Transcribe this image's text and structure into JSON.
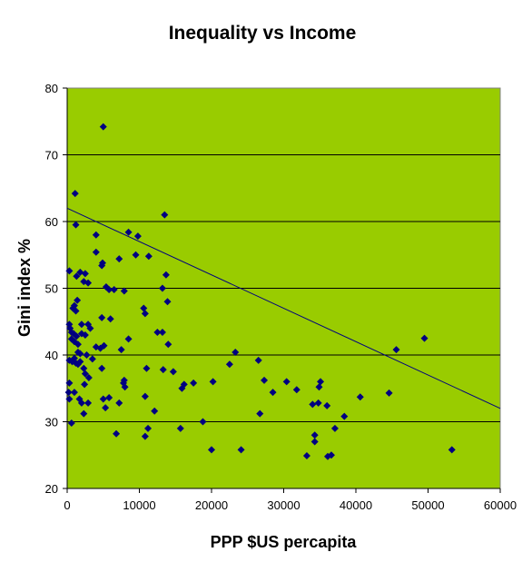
{
  "colors": {
    "plot_area": "#99cc00",
    "points": "#000080",
    "gridlines": "#000000",
    "trendline": "#000080"
  },
  "chart_data": {
    "type": "scatter",
    "title": "Inequality vs Income",
    "xlabel": "PPP $US percapita",
    "ylabel": "Gini index %",
    "xlim": [
      0,
      60000
    ],
    "ylim": [
      20,
      80
    ],
    "x_ticks": [
      "0",
      "10000",
      "20000",
      "30000",
      "40000",
      "50000",
      "60000"
    ],
    "y_ticks": [
      "20",
      "30",
      "40",
      "50",
      "60",
      "70",
      "80"
    ],
    "grid": "horizontal major gridlines",
    "legend": "none",
    "marker": "diamond",
    "trendline": {
      "type": "linear",
      "points": [
        [
          0,
          62
        ],
        [
          60000,
          32
        ]
      ]
    },
    "points": [
      [
        5000,
        74.2
      ],
      [
        1100,
        64.2
      ],
      [
        13500,
        61
      ],
      [
        1200,
        59.5
      ],
      [
        4000,
        58
      ],
      [
        8500,
        58.4
      ],
      [
        9800,
        57.8
      ],
      [
        4000,
        55.4
      ],
      [
        9500,
        55
      ],
      [
        11300,
        54.8
      ],
      [
        7200,
        54.4
      ],
      [
        4800,
        53.4
      ],
      [
        4900,
        53.8
      ],
      [
        300,
        52.6
      ],
      [
        1800,
        52.4
      ],
      [
        2500,
        52.2
      ],
      [
        13700,
        52
      ],
      [
        1300,
        51.8
      ],
      [
        2300,
        51
      ],
      [
        2900,
        50.8
      ],
      [
        5400,
        50.2
      ],
      [
        5800,
        49.8
      ],
      [
        6500,
        49.8
      ],
      [
        7900,
        49.6
      ],
      [
        13200,
        50
      ],
      [
        1400,
        48.2
      ],
      [
        13900,
        48
      ],
      [
        800,
        47
      ],
      [
        1000,
        47.4
      ],
      [
        1200,
        46.6
      ],
      [
        10600,
        47
      ],
      [
        10800,
        46.2
      ],
      [
        4800,
        45.6
      ],
      [
        6000,
        45.4
      ],
      [
        300,
        44.6
      ],
      [
        2000,
        44.6
      ],
      [
        2900,
        44.6
      ],
      [
        3200,
        44
      ],
      [
        400,
        44
      ],
      [
        600,
        43.4
      ],
      [
        900,
        43.2
      ],
      [
        1300,
        42.8
      ],
      [
        2000,
        43.2
      ],
      [
        2500,
        43
      ],
      [
        12500,
        43.4
      ],
      [
        13200,
        43.4
      ],
      [
        600,
        42.4
      ],
      [
        8500,
        42.4
      ],
      [
        1000,
        42
      ],
      [
        1500,
        41.6
      ],
      [
        4000,
        41.2
      ],
      [
        4600,
        41
      ],
      [
        5100,
        41.4
      ],
      [
        7500,
        40.8
      ],
      [
        14000,
        41.6
      ],
      [
        23300,
        40.4
      ],
      [
        45600,
        40.8
      ],
      [
        49500,
        42.5
      ],
      [
        1500,
        40.4
      ],
      [
        1800,
        40.2
      ],
      [
        2700,
        40
      ],
      [
        1000,
        39.5
      ],
      [
        300,
        39.2
      ],
      [
        700,
        39
      ],
      [
        1200,
        38.8
      ],
      [
        1500,
        38.6
      ],
      [
        1800,
        39
      ],
      [
        3500,
        39.4
      ],
      [
        22500,
        38.6
      ],
      [
        26500,
        39.2
      ],
      [
        2300,
        38
      ],
      [
        4800,
        38
      ],
      [
        11000,
        38
      ],
      [
        13300,
        37.8
      ],
      [
        14700,
        37.5
      ],
      [
        2500,
        37.2
      ],
      [
        3000,
        36.6
      ],
      [
        7900,
        36.2
      ],
      [
        7800,
        35.8
      ],
      [
        8000,
        35.2
      ],
      [
        15900,
        35
      ],
      [
        16200,
        35.6
      ],
      [
        17500,
        35.8
      ],
      [
        20200,
        36
      ],
      [
        27300,
        36.2
      ],
      [
        30400,
        36
      ],
      [
        35100,
        36
      ],
      [
        300,
        35.8
      ],
      [
        2400,
        35.6
      ],
      [
        31800,
        34.8
      ],
      [
        34900,
        35.2
      ],
      [
        28500,
        34.4
      ],
      [
        44600,
        34.3
      ],
      [
        200,
        34.4
      ],
      [
        1000,
        34.4
      ],
      [
        1700,
        33.4
      ],
      [
        40600,
        33.7
      ],
      [
        5000,
        33.4
      ],
      [
        5800,
        33.6
      ],
      [
        10800,
        33.8
      ],
      [
        300,
        33.4
      ],
      [
        2000,
        32.8
      ],
      [
        2900,
        32.8
      ],
      [
        7200,
        32.8
      ],
      [
        34800,
        32.8
      ],
      [
        34000,
        32.6
      ],
      [
        36000,
        32.4
      ],
      [
        12100,
        31.6
      ],
      [
        2300,
        31.2
      ],
      [
        5300,
        32.1
      ],
      [
        26700,
        31.2
      ],
      [
        38400,
        30.8
      ],
      [
        600,
        29.8
      ],
      [
        11200,
        29
      ],
      [
        15700,
        29
      ],
      [
        18800,
        30
      ],
      [
        37100,
        29
      ],
      [
        6800,
        28.2
      ],
      [
        10800,
        27.8
      ],
      [
        34300,
        28
      ],
      [
        34300,
        27
      ],
      [
        20000,
        25.8
      ],
      [
        24100,
        25.8
      ],
      [
        33200,
        24.9
      ],
      [
        36100,
        24.8
      ],
      [
        36600,
        25
      ],
      [
        53300,
        25.8
      ]
    ]
  }
}
